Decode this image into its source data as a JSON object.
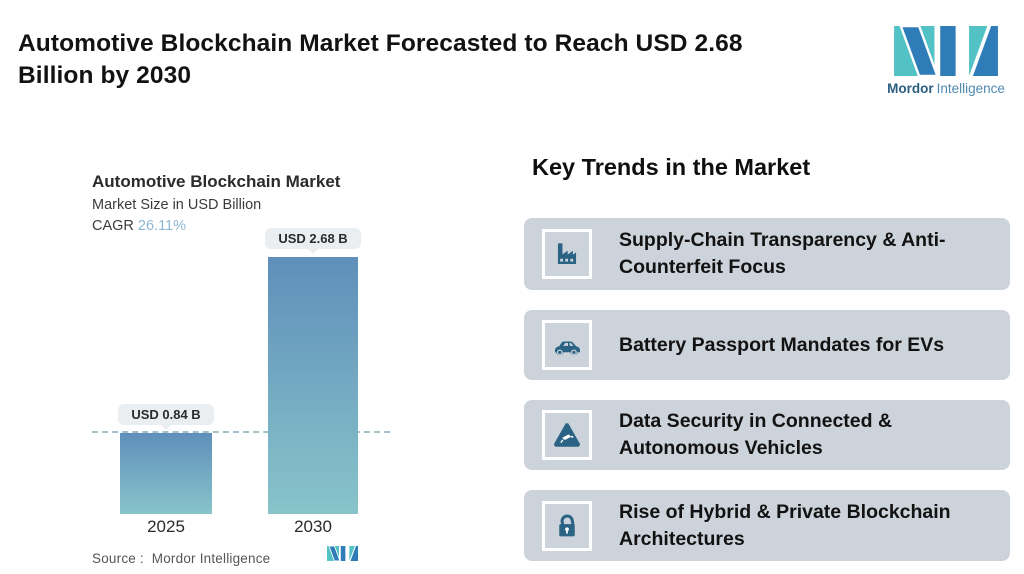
{
  "header": {
    "title_lines": [
      "Automotive Blockchain Market Forecasted to Reach USD 2.68",
      "Billion by 2030"
    ]
  },
  "brand": {
    "name_bold": "Mordor",
    "name_light": "Intelligence"
  },
  "chart": {
    "title": "Automotive Blockchain Market",
    "subtitle": "Market Size in USD Billion",
    "cagr_label": "CAGR",
    "cagr_value": "26.11%",
    "source": "Source :  Mordor Intelligence"
  },
  "chart_data": {
    "type": "bar",
    "title": "Automotive Blockchain Market",
    "ylabel": "Market Size in USD Billion",
    "cagr_percent": 26.11,
    "categories": [
      "2025",
      "2030"
    ],
    "values": [
      0.84,
      2.68
    ],
    "value_labels": [
      "USD 0.84 B",
      "USD 2.68 B"
    ],
    "unit": "USD Billion",
    "ylim": [
      0,
      2.68
    ],
    "reference_line": 0.84,
    "grid": false,
    "legend": "none",
    "bar_color_top": "#5f8fba",
    "bar_color_bottom": "#88c4ca"
  },
  "trends": {
    "heading": "Key Trends in the Market",
    "items": [
      {
        "icon": "factory-icon",
        "label": "Supply-Chain Transparency & Anti-Counterfeit Focus"
      },
      {
        "icon": "car-icon",
        "label": "Battery Passport Mandates for EVs"
      },
      {
        "icon": "warning-camera-icon",
        "label": "Data Security in Connected & Autonomous Vehicles"
      },
      {
        "icon": "open-padlock-icon",
        "label": "Rise of Hybrid & Private Blockchain Architectures"
      }
    ]
  },
  "colors": {
    "accent_teal": "#52c2c4",
    "accent_blue": "#2e7cb8",
    "card_bg": "#cdd3da",
    "icon_blue": "#2a6384",
    "pill_bg": "#eaeef0",
    "dashed_line": "#a5bfcb",
    "cagr_value": "#8fb7d3"
  }
}
